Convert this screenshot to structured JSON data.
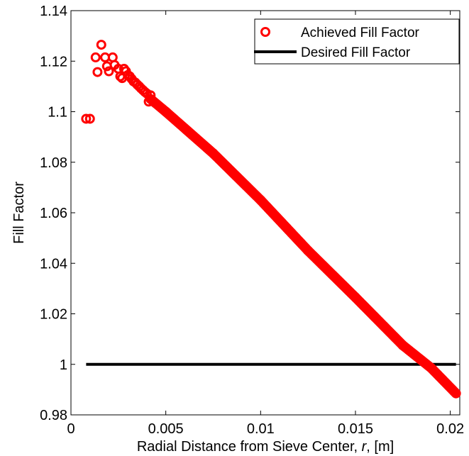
{
  "chart_data": {
    "type": "scatter",
    "xlabel": {
      "text": "Radial Distance from Sieve Center, ",
      "var": "r",
      "unit": ", [m]"
    },
    "ylabel": "Fill Factor",
    "xlim": [
      0,
      0.0205
    ],
    "ylim": [
      0.98,
      1.14
    ],
    "xticks": [
      0,
      0.005,
      0.01,
      0.015,
      0.02
    ],
    "xtick_labels": [
      "0",
      "0.005",
      "0.01",
      "0.015",
      "0.02"
    ],
    "yticks": [
      0.98,
      1,
      1.02,
      1.04,
      1.06,
      1.08,
      1.1,
      1.12,
      1.14
    ],
    "ytick_labels": [
      "0.98",
      "1",
      "1.02",
      "1.04",
      "1.06",
      "1.08",
      "1.1",
      "1.12",
      "1.14"
    ],
    "grid": false,
    "legend_position": "top-right",
    "series": [
      {
        "name": "Achieved Fill Factor",
        "kind": "scatter",
        "marker": "circle-open",
        "color": "#ff0000",
        "points": [
          [
            0.0008,
            1.0972
          ],
          [
            0.001,
            1.0972
          ],
          [
            0.0013,
            1.1215
          ],
          [
            0.0014,
            1.1157
          ],
          [
            0.0016,
            1.1265
          ],
          [
            0.0018,
            1.1215
          ],
          [
            0.0019,
            1.118
          ],
          [
            0.002,
            1.116
          ],
          [
            0.0022,
            1.1215
          ],
          [
            0.0023,
            1.1185
          ],
          [
            0.0025,
            1.117
          ],
          [
            0.0026,
            1.114
          ],
          [
            0.0027,
            1.1133
          ],
          [
            0.0028,
            1.117
          ],
          [
            0.0029,
            1.116
          ],
          [
            0.003,
            1.1145
          ],
          [
            0.0031,
            1.114
          ],
          [
            0.0032,
            1.113
          ],
          [
            0.0033,
            1.112
          ],
          [
            0.0034,
            1.1115
          ],
          [
            0.0035,
            1.1107
          ],
          [
            0.0036,
            1.11
          ],
          [
            0.0037,
            1.1092
          ],
          [
            0.0038,
            1.1085
          ],
          [
            0.0039,
            1.1078
          ],
          [
            0.004,
            1.1072
          ],
          [
            0.0041,
            1.104
          ],
          [
            0.0042,
            1.1065
          ]
        ],
        "continuous_segment": {
          "note_points": [
            [
              0.0042,
              1.105
            ],
            [
              0.005,
              1.1
            ],
            [
              0.0075,
              1.0835
            ],
            [
              0.01,
              1.065
            ],
            [
              0.0125,
              1.045
            ],
            [
              0.015,
              1.0265
            ],
            [
              0.0175,
              1.0075
            ],
            [
              0.019,
              0.9985
            ],
            [
              0.0203,
              0.9885
            ]
          ]
        }
      },
      {
        "name": "Desired Fill Factor",
        "kind": "line",
        "color": "#000000",
        "x": [
          0.0008,
          0.0203
        ],
        "y": [
          1.0,
          1.0
        ]
      }
    ]
  }
}
